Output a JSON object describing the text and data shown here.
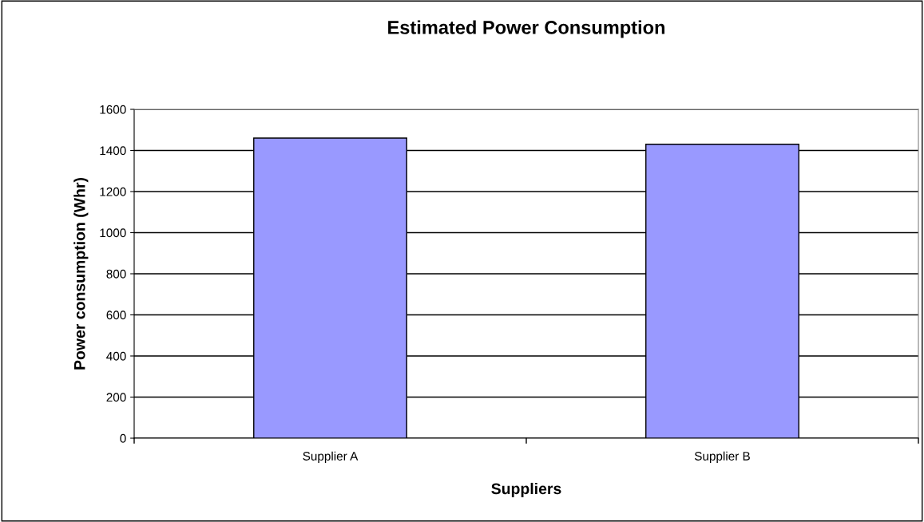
{
  "chart_data": {
    "type": "bar",
    "title": "Estimated Power Consumption",
    "xlabel": "Suppliers",
    "ylabel": "Power consumption (Whr)",
    "categories": [
      "Supplier A",
      "Supplier B"
    ],
    "series": [
      {
        "color": "#9999ff",
        "values": [
          1460,
          1430
        ]
      }
    ],
    "ylim": [
      0,
      1600
    ],
    "yticks": [
      0,
      200,
      400,
      600,
      800,
      1000,
      1200,
      1400,
      1600
    ],
    "grid": "y"
  }
}
